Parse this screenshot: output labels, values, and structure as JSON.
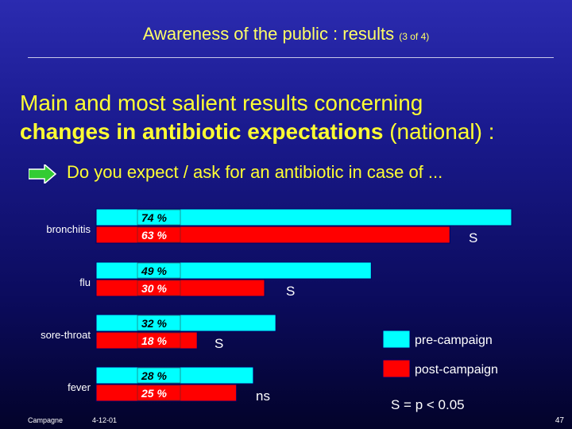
{
  "slide": {
    "title": "Awareness of the public : results",
    "title_suffix": "(3 of 4)",
    "headline_part1": "Main and most salient results concerning",
    "headline_bold": "changes in antibiotic expectations",
    "headline_part2": " (national) :",
    "question": "Do you expect / ask for an antibiotic in case of  ...",
    "footer_left": "Campagne",
    "footer_date": "4-12-01",
    "page_number": "47"
  },
  "colors": {
    "pre": "#00ffff",
    "post": "#ff0000",
    "text_yellow": "#ffff33",
    "arrow": "#33cc33"
  },
  "chart_data": {
    "type": "bar",
    "orientation": "horizontal",
    "categories": [
      "bronchitis",
      "flu",
      "sore-throat",
      "fever"
    ],
    "series": [
      {
        "name": "pre-campaign",
        "values": [
          74,
          49,
          32,
          28
        ],
        "labels": [
          "74 %",
          "49 %",
          "32 %",
          "28 %"
        ]
      },
      {
        "name": "post-campaign",
        "values": [
          63,
          30,
          18,
          25
        ],
        "labels": [
          "63 %",
          "30 %",
          "18 %",
          "25 %"
        ]
      }
    ],
    "significance": [
      "S",
      "S",
      "S",
      "ns"
    ],
    "legend_position": "bottom-right",
    "significance_note": "S  =  p < 0.05",
    "xlim": [
      0,
      74
    ],
    "grid": false
  }
}
